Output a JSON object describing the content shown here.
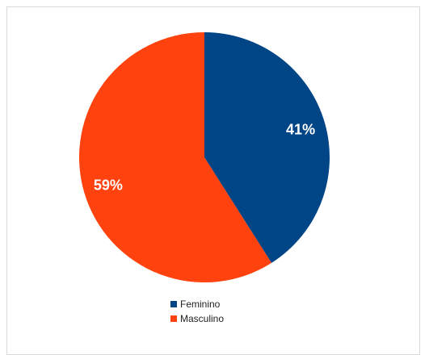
{
  "chart_data": {
    "type": "pie",
    "title": "",
    "slices": [
      {
        "label": "Feminino",
        "value": 41,
        "display": "41%",
        "color": "#004586"
      },
      {
        "label": "Masculino",
        "value": 59,
        "display": "59%",
        "color": "#ff420e"
      }
    ],
    "legend": {
      "placement": "bottom",
      "entries": [
        "Feminino",
        "Masculino"
      ]
    }
  }
}
